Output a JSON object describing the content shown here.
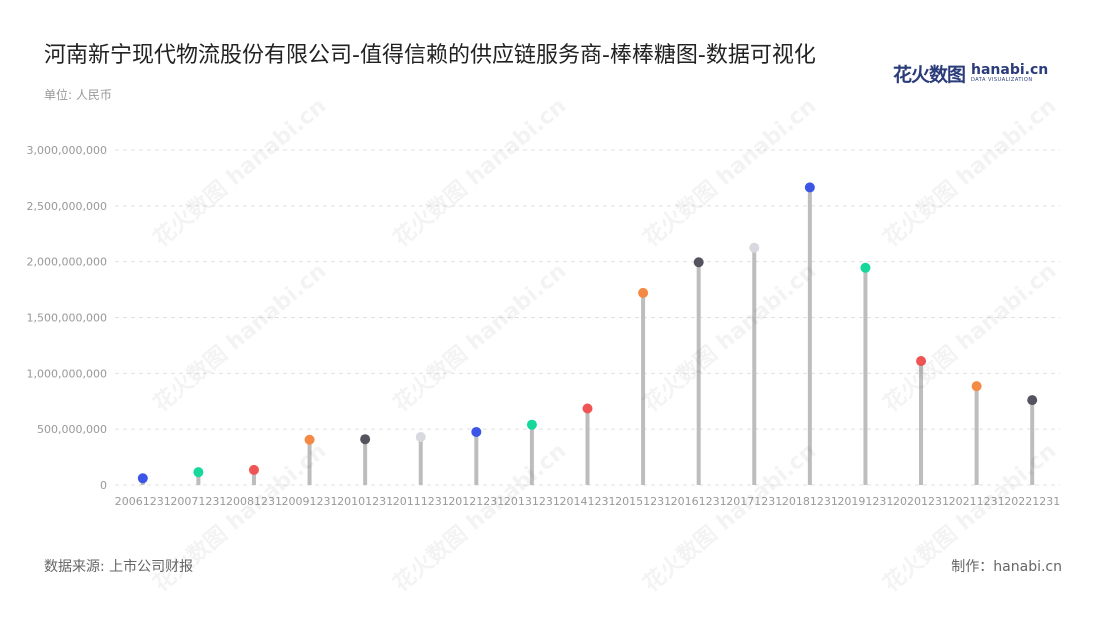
{
  "header": {
    "title": "河南新宁现代物流股份有限公司-值得信赖的供应链服务商-棒棒糖图-数据可视化",
    "unit": "单位: 人民币"
  },
  "logo": {
    "cn": "花火数图",
    "en": "hanabi.cn",
    "tagline": "DATA VISUALIZATION"
  },
  "footer": {
    "source": "数据来源: 上市公司财报",
    "credit": "制作：hanabi.cn"
  },
  "watermark": {
    "text": "花火数图 hanabi.cn"
  },
  "colors": {
    "stem": "#bdbdbd",
    "grid": "#e0e0e0",
    "tick_text": "#999999",
    "palette": [
      "#3b55e6",
      "#15d89a",
      "#f05454",
      "#f58a45",
      "#545460",
      "#d8d8e0"
    ]
  },
  "chart_data": {
    "type": "lollipop",
    "categories": [
      "20061231",
      "20071231",
      "20081231",
      "20091231",
      "20101231",
      "20111231",
      "20121231",
      "20131231",
      "20141231",
      "20151231",
      "20161231",
      "20171231",
      "20181231",
      "20191231",
      "20201231",
      "20211231",
      "20221231"
    ],
    "values": [
      60000000,
      115000000,
      135000000,
      405000000,
      410000000,
      430000000,
      475000000,
      540000000,
      685000000,
      1720000000,
      1995000000,
      2125000000,
      2665000000,
      1945000000,
      1110000000,
      885000000,
      760000000
    ],
    "ylim": [
      0,
      3000000000
    ],
    "yticks": [
      0,
      500000000,
      1000000000,
      1500000000,
      2000000000,
      2500000000,
      3000000000
    ],
    "ytick_labels": [
      "0",
      "500,000,000",
      "1,000,000,000",
      "1,500,000,000",
      "2,000,000,000",
      "2,500,000,000",
      "3,000,000,000"
    ],
    "grid": true
  }
}
